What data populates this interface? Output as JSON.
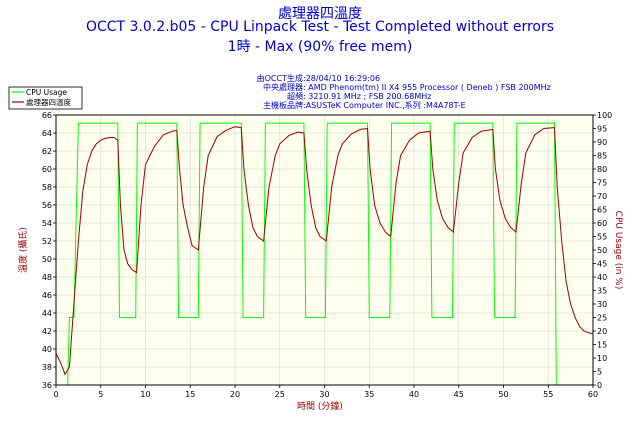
{
  "chart_data": {
    "type": "line",
    "title": "處理器四溫度",
    "subtitle_1": "OCCT 3.0.2.b05 - CPU Linpack Test - Test Completed without errors",
    "subtitle_2": "1時 - Max (90% free mem)",
    "info": [
      {
        "label": "由OCCT生成",
        "value": ":28/04/10 16:29:06"
      },
      {
        "label": "中央處理器",
        "value": ": AMD Phenom(tm) II X4 955 Processor ( Deneb ) FSB 200MHz"
      },
      {
        "label": "超頻",
        "value": ": 3210.91 MHz ; FSB 200.68MHz"
      },
      {
        "label": "主機板品牌",
        "value": ":ASUSTeK Computer INC.,系列 :M4A78T-E"
      }
    ],
    "xlabel": "時間 (分鐘)",
    "ylabel_left": "溫度 (攝氏)",
    "ylabel_right": "CPU Usage (in %)",
    "xlim": [
      0,
      60
    ],
    "ylim_left": [
      36,
      66
    ],
    "ylim_right": [
      0,
      100
    ],
    "xticks": [
      0,
      5,
      10,
      15,
      20,
      25,
      30,
      35,
      40,
      45,
      50,
      55,
      60
    ],
    "yticks_left": [
      36,
      38,
      40,
      42,
      44,
      46,
      48,
      50,
      52,
      54,
      56,
      58,
      60,
      62,
      64,
      66
    ],
    "yticks_right": [
      0,
      5,
      10,
      15,
      20,
      25,
      30,
      35,
      40,
      45,
      50,
      55,
      60,
      65,
      70,
      75,
      80,
      85,
      90,
      95,
      100
    ],
    "grid": true,
    "legend_position": "top-left",
    "colors": {
      "cpu_usage": "#00ff00",
      "temperature": "#990000",
      "plot_background": "#ffffee",
      "grid": "#dddddd",
      "title": "#0000cc",
      "axis_label": "#990000"
    },
    "series": [
      {
        "name": "CPU Usage",
        "axis": "right",
        "x": [
          0,
          1.3,
          1.5,
          2.0,
          2.5,
          6.9,
          7.1,
          8.9,
          9.1,
          13.5,
          13.7,
          15.9,
          16.1,
          20.7,
          20.9,
          23.2,
          23.4,
          27.7,
          27.9,
          30.1,
          30.3,
          34.8,
          35.0,
          37.3,
          37.5,
          41.8,
          42.0,
          44.3,
          44.5,
          48.8,
          49.0,
          51.3,
          51.5,
          55.7,
          55.9,
          60
        ],
        "y": [
          0,
          0,
          25,
          25,
          97,
          97,
          25,
          25,
          97,
          97,
          25,
          25,
          97,
          97,
          25,
          25,
          97,
          97,
          25,
          25,
          97,
          97,
          25,
          25,
          97,
          97,
          25,
          25,
          97,
          97,
          25,
          25,
          97,
          97,
          0,
          0
        ]
      },
      {
        "name": "處理器四溫度",
        "axis": "left",
        "x": [
          0,
          0.5,
          1.0,
          1.5,
          2.0,
          2.5,
          3.0,
          3.5,
          4.0,
          4.5,
          5.0,
          5.5,
          6.0,
          6.5,
          6.9,
          7.2,
          7.6,
          8.0,
          8.5,
          9.0,
          9.5,
          10,
          11,
          12,
          13,
          13.5,
          13.8,
          14.2,
          14.7,
          15.2,
          15.9,
          16.5,
          17,
          18,
          19,
          20,
          20.7,
          21.0,
          21.5,
          22.0,
          22.5,
          23.2,
          23.8,
          24.5,
          25,
          26,
          27,
          27.7,
          28.0,
          28.5,
          29.0,
          29.5,
          30.2,
          30.8,
          31.5,
          32,
          33,
          34,
          34.8,
          35.1,
          35.6,
          36.2,
          36.8,
          37.4,
          38.0,
          38.5,
          39.5,
          40.5,
          41.8,
          42.1,
          42.6,
          43.2,
          43.8,
          44.4,
          45.0,
          45.5,
          46.5,
          47.5,
          48.8,
          49.1,
          49.6,
          50.2,
          50.8,
          51.4,
          52.0,
          52.5,
          53.5,
          54.5,
          55.7,
          56.0,
          56.5,
          57.0,
          57.5,
          58.0,
          58.5,
          59.0,
          59.5,
          60
        ],
        "y": [
          39.5,
          38.5,
          37.2,
          38.0,
          45.0,
          52.0,
          57.5,
          60.5,
          62.0,
          62.8,
          63.2,
          63.4,
          63.5,
          63.5,
          63.2,
          56.0,
          51.0,
          49.5,
          48.8,
          48.5,
          56.0,
          60.5,
          62.5,
          63.8,
          64.2,
          64.3,
          60.0,
          56.0,
          53.5,
          51.5,
          51.0,
          58.0,
          61.5,
          63.6,
          64.3,
          64.7,
          64.6,
          60.0,
          56.0,
          53.5,
          52.5,
          52.0,
          58.0,
          61.5,
          62.8,
          63.7,
          64.1,
          64.0,
          60.0,
          56.0,
          53.5,
          52.5,
          52.0,
          58.0,
          61.5,
          62.8,
          63.9,
          64.4,
          64.5,
          60.0,
          56.0,
          54.0,
          53.0,
          52.5,
          58.5,
          61.5,
          63.2,
          64.0,
          64.2,
          60.0,
          56.5,
          54.5,
          53.5,
          53.0,
          58.5,
          61.8,
          63.5,
          64.2,
          64.4,
          60.0,
          56.5,
          54.5,
          53.5,
          53.0,
          58.5,
          61.8,
          63.8,
          64.5,
          64.6,
          58.0,
          52.0,
          47.5,
          45.0,
          43.5,
          42.5,
          42.0,
          41.8,
          41.7
        ]
      }
    ]
  }
}
